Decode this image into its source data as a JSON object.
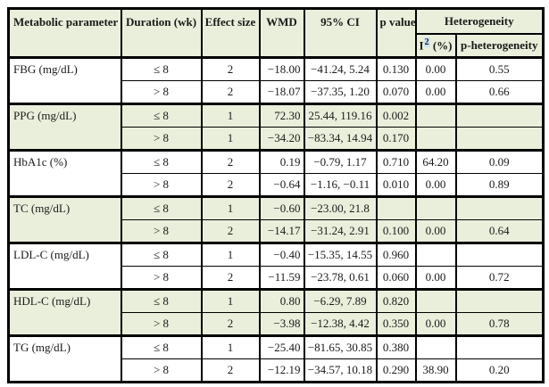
{
  "colors": {
    "header_bg": "#e9efdb",
    "group_bg": "#e9efdb",
    "border": "#000000",
    "i2_highlight": "#cfe4f2"
  },
  "table": {
    "headers": {
      "metabolic_parameter": "Metabolic parameter",
      "duration": "Duration (wk)",
      "effect_size": "Effect size",
      "wmd": "WMD",
      "ci": "95% CI",
      "p_value": "p value",
      "heterogeneity": "Heterogeneity",
      "i2_base": "I",
      "i2_sup": "2",
      "i2_unit": " (%)",
      "p_heterogeneity": "p-heterogeneity"
    },
    "groups": [
      {
        "parameter": "FBG (mg/dL)",
        "shaded": false,
        "rows": [
          {
            "duration": "≤ 8",
            "effect_size": "2",
            "wmd": "−18.00",
            "ci": "−41.24, 5.24",
            "p_value": "0.130",
            "i2": "0.00",
            "p_het": "0.55"
          },
          {
            "duration": "> 8",
            "effect_size": "2",
            "wmd": "−18.07",
            "ci": "−37.35, 1.20",
            "p_value": "0.070",
            "i2": "0.00",
            "p_het": "0.66"
          }
        ]
      },
      {
        "parameter": "PPG (mg/dL)",
        "shaded": true,
        "rows": [
          {
            "duration": "≤ 8",
            "effect_size": "1",
            "wmd": "72.30",
            "ci": "25.44, 119.16",
            "p_value": "0.002",
            "i2": "",
            "p_het": ""
          },
          {
            "duration": "> 8",
            "effect_size": "1",
            "wmd": "−34.20",
            "ci": "−83.34, 14.94",
            "p_value": "0.170",
            "i2": "",
            "p_het": ""
          }
        ]
      },
      {
        "parameter": "HbA1c (%)",
        "shaded": false,
        "rows": [
          {
            "duration": "≤ 8",
            "effect_size": "2",
            "wmd": "0.19",
            "ci": "−0.79, 1.17",
            "p_value": "0.710",
            "i2": "64.20",
            "p_het": "0.09"
          },
          {
            "duration": "> 8",
            "effect_size": "2",
            "wmd": "−0.64",
            "ci": "−1.16, −0.11",
            "p_value": "0.010",
            "i2": "0.00",
            "p_het": "0.89"
          }
        ]
      },
      {
        "parameter": "TC (mg/dL)",
        "shaded": true,
        "rows": [
          {
            "duration": "≤ 8",
            "effect_size": "1",
            "wmd": "−0.60",
            "ci": "−23.00, 21.8",
            "p_value": "",
            "i2": "",
            "p_het": ""
          },
          {
            "duration": "> 8",
            "effect_size": "2",
            "wmd": "−14.17",
            "ci": "−31.24, 2.91",
            "p_value": "0.100",
            "i2": "0.00",
            "p_het": "0.64"
          }
        ]
      },
      {
        "parameter": "LDL-C (mg/dL)",
        "shaded": false,
        "rows": [
          {
            "duration": "≤ 8",
            "effect_size": "1",
            "wmd": "−0.40",
            "ci": "−15.35, 14.55",
            "p_value": "0.960",
            "i2": "",
            "p_het": ""
          },
          {
            "duration": "> 8",
            "effect_size": "2",
            "wmd": "−11.59",
            "ci": "−23.78, 0.61",
            "p_value": "0.060",
            "i2": "0.00",
            "p_het": "0.72"
          }
        ]
      },
      {
        "parameter": "HDL-C (mg/dL)",
        "shaded": true,
        "rows": [
          {
            "duration": "≤ 8",
            "effect_size": "1",
            "wmd": "0.80",
            "ci": "−6.29, 7.89",
            "p_value": "0.820",
            "i2": "",
            "p_het": ""
          },
          {
            "duration": "> 8",
            "effect_size": "2",
            "wmd": "−3.98",
            "ci": "−12.38, 4.42",
            "p_value": "0.350",
            "i2": "0.00",
            "p_het": "0.78"
          }
        ]
      },
      {
        "parameter": "TG (mg/dL)",
        "shaded": false,
        "rows": [
          {
            "duration": "≤ 8",
            "effect_size": "1",
            "wmd": "−25.40",
            "ci": "−81.65, 30.85",
            "p_value": "0.380",
            "i2": "",
            "p_het": ""
          },
          {
            "duration": "> 8",
            "effect_size": "2",
            "wmd": "−12.19",
            "ci": "−34.57, 10.18",
            "p_value": "0.290",
            "i2": "38.90",
            "p_het": "0.20"
          }
        ]
      }
    ]
  }
}
